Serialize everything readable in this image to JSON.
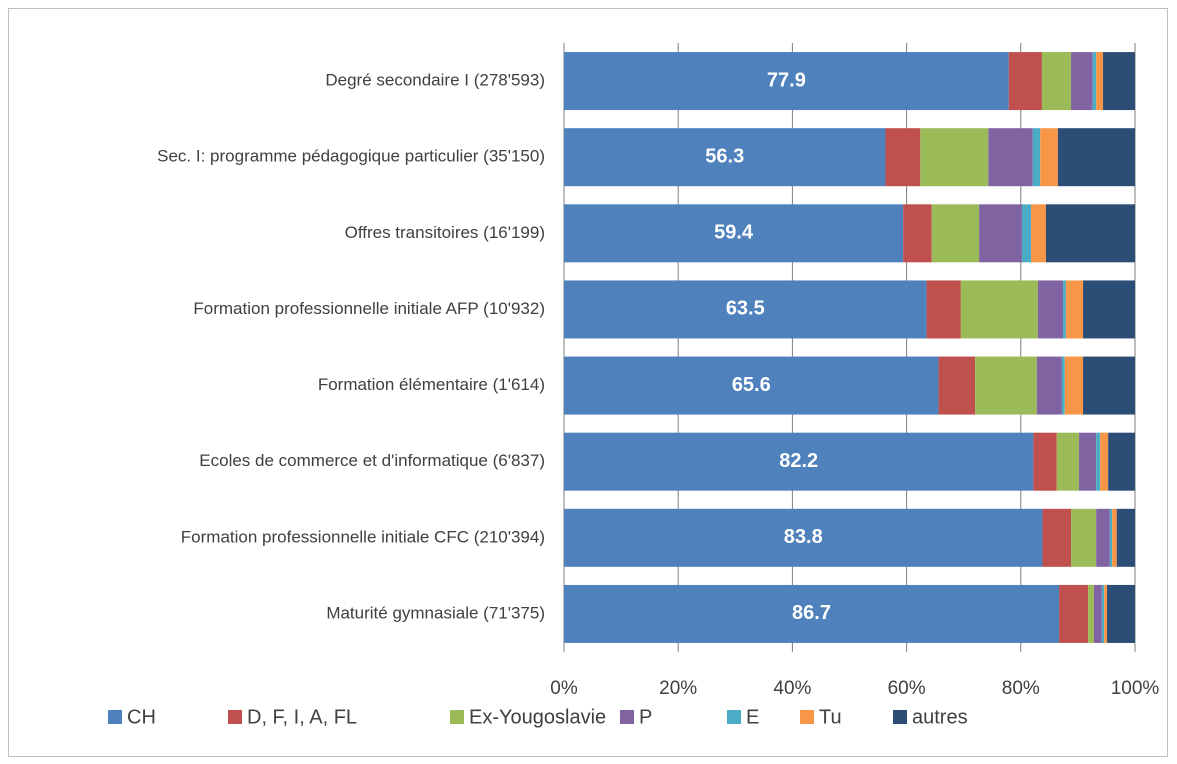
{
  "chart_data": {
    "type": "stacked_bar_horizontal",
    "categories": [
      "Degré secondaire I (278'593)",
      "Sec. I: programme pédagogique particulier (35'150)",
      "Offres transitoires (16'199)",
      "Formation professionnelle initiale AFP (10'932)",
      "Formation élémentaire (1'614)",
      "Ecoles de commerce et d'informatique (6'837)",
      "Formation professionnelle initiale CFC (210'394)",
      "Maturité gymnasiale (71'375)"
    ],
    "series": [
      {
        "name": "CH",
        "color": "#4f81bd",
        "values": [
          77.9,
          56.3,
          59.4,
          63.5,
          65.6,
          82.2,
          83.8,
          86.7
        ]
      },
      {
        "name": "D, F, I, A, FL",
        "color": "#c0504d",
        "values": [
          5.8,
          6.1,
          5.0,
          6.0,
          6.4,
          4.1,
          5.0,
          5.1
        ]
      },
      {
        "name": "Ex-Yougoslavie",
        "color": "#9bbb59",
        "values": [
          5.1,
          11.9,
          8.3,
          13.5,
          10.8,
          3.9,
          4.4,
          1.0
        ]
      },
      {
        "name": "P",
        "color": "#8064a2",
        "values": [
          3.8,
          7.8,
          7.5,
          4.4,
          4.4,
          3.0,
          2.4,
          1.4
        ]
      },
      {
        "name": "E",
        "color": "#4bacc6",
        "values": [
          0.6,
          1.3,
          1.6,
          0.5,
          0.5,
          0.7,
          0.4,
          0.4
        ]
      },
      {
        "name": "Tu",
        "color": "#f79646",
        "values": [
          1.2,
          3.1,
          2.6,
          3.0,
          3.2,
          1.4,
          0.8,
          0.5
        ]
      },
      {
        "name": "autres",
        "color": "#2c4d75",
        "values": [
          5.6,
          13.5,
          15.6,
          9.1,
          9.1,
          4.7,
          3.2,
          4.9
        ]
      }
    ],
    "xlim": [
      0,
      100
    ],
    "xticks": [
      {
        "value": 0,
        "label": "0%"
      },
      {
        "value": 20,
        "label": "20%"
      },
      {
        "value": 40,
        "label": "40%"
      },
      {
        "value": 60,
        "label": "60%"
      },
      {
        "value": 80,
        "label": "80%"
      },
      {
        "value": 100,
        "label": "100%"
      }
    ],
    "grid": true,
    "legend": "bottom"
  }
}
